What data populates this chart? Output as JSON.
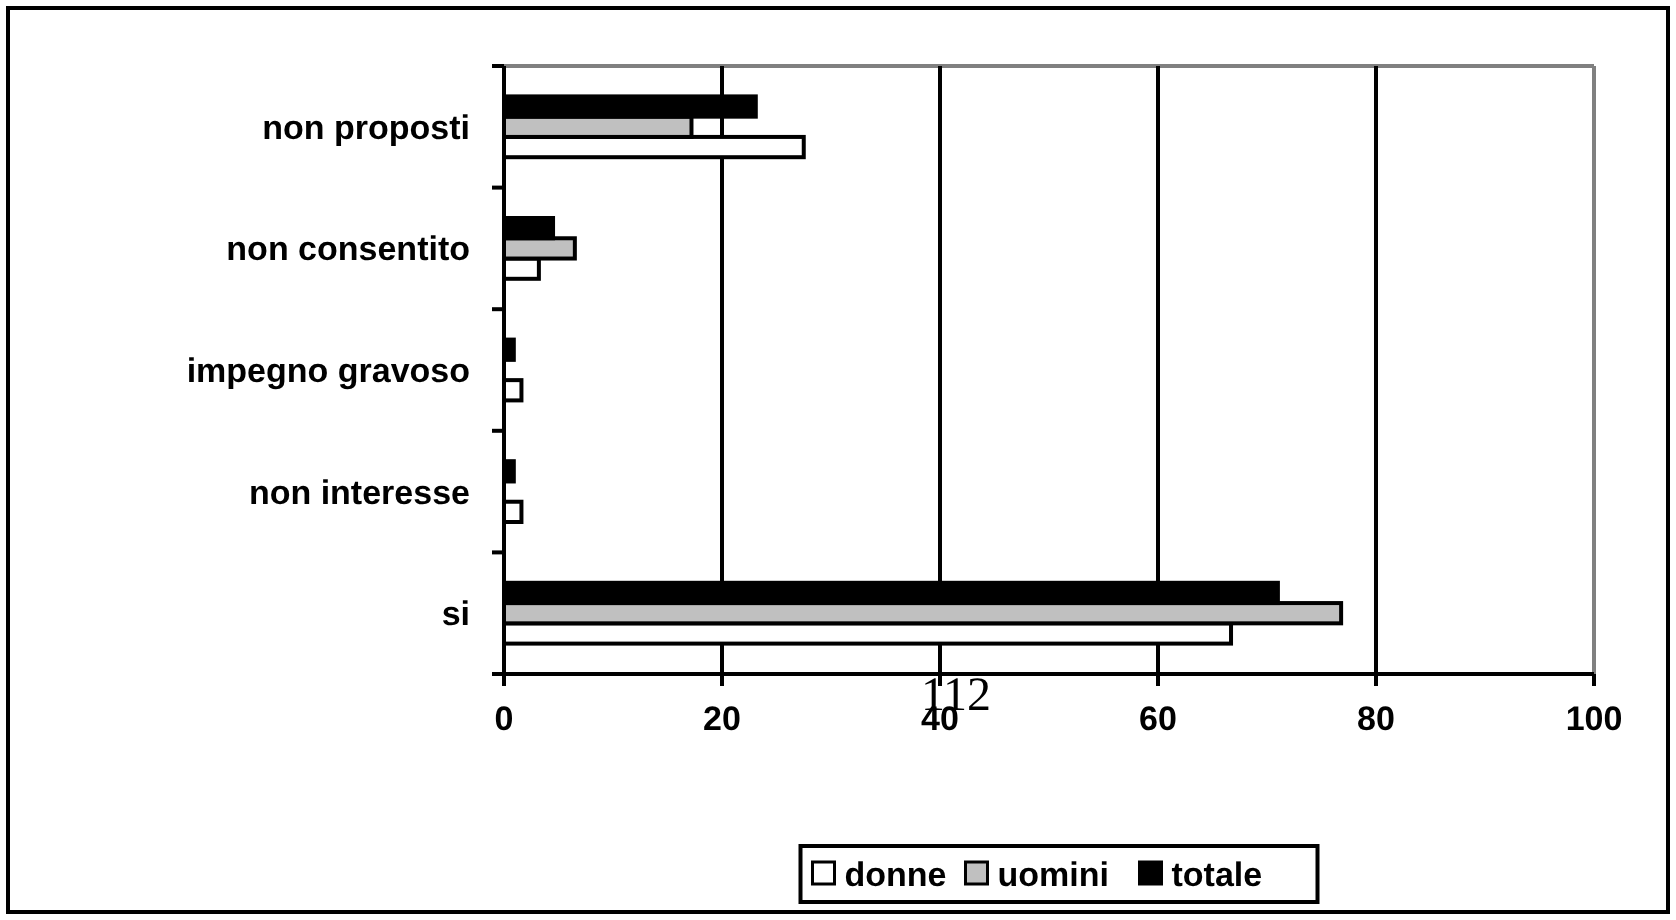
{
  "chart_data": {
    "type": "bar",
    "orientation": "horizontal",
    "categories": [
      "non proposti",
      "non consentito",
      "impegno gravoso",
      "non interesse",
      "si"
    ],
    "series": [
      {
        "name": "donne",
        "color": "#ffffff",
        "values": [
          27.5,
          3.2,
          1.6,
          1.6,
          66.7
        ]
      },
      {
        "name": "uomini",
        "color": "#c0c0c0",
        "values": [
          17.2,
          6.5,
          0,
          0,
          76.8
        ]
      },
      {
        "name": "totale",
        "color": "#000000",
        "values": [
          23.1,
          4.5,
          0.9,
          0.9,
          71.0
        ]
      }
    ],
    "xlim": [
      0,
      100
    ],
    "xticks": [
      0,
      20,
      40,
      60,
      80,
      100
    ],
    "grid": "x",
    "legend": "bottom",
    "annotations": [
      "112"
    ]
  }
}
